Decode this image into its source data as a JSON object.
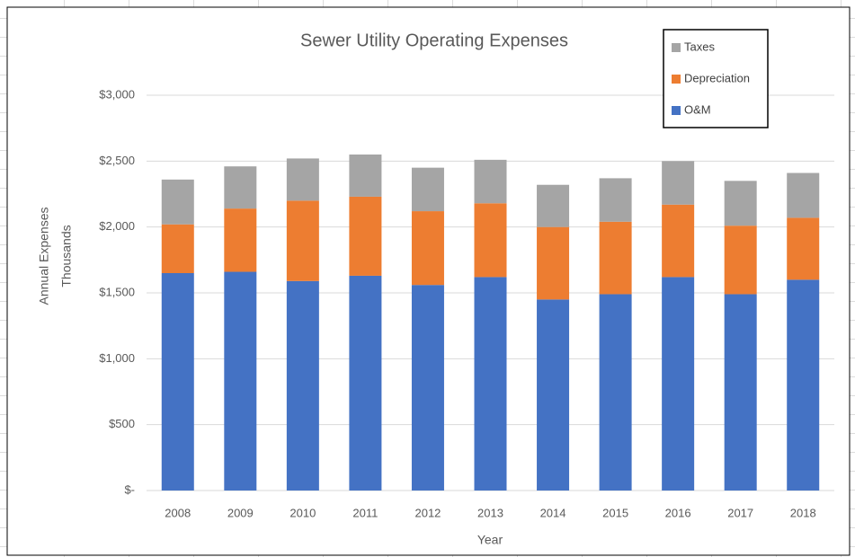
{
  "chart_data": {
    "type": "stacked_bar",
    "title": "Sewer Utility Operating Expenses",
    "xlabel": "Year",
    "ylabel": "Annual Expenses",
    "ylabel_unit": "Thousands",
    "categories": [
      "2008",
      "2009",
      "2010",
      "2011",
      "2012",
      "2013",
      "2014",
      "2015",
      "2016",
      "2017",
      "2018"
    ],
    "series": [
      {
        "name": "O&M",
        "color": "#4472c4",
        "values": [
          1650,
          1660,
          1590,
          1630,
          1560,
          1620,
          1450,
          1490,
          1620,
          1490,
          1600
        ]
      },
      {
        "name": "Depreciation",
        "color": "#ed7d31",
        "values": [
          370,
          480,
          610,
          600,
          560,
          560,
          550,
          550,
          550,
          520,
          470
        ]
      },
      {
        "name": "Taxes",
        "color": "#a5a5a5",
        "values": [
          340,
          320,
          320,
          320,
          330,
          330,
          320,
          330,
          330,
          340,
          340
        ]
      }
    ],
    "ylim": [
      0,
      3000
    ],
    "yticks": [
      {
        "value": 0,
        "label": "$-"
      },
      {
        "value": 500,
        "label": "$500"
      },
      {
        "value": 1000,
        "label": "$1,000"
      },
      {
        "value": 1500,
        "label": "$1,500"
      },
      {
        "value": 2000,
        "label": "$2,000"
      },
      {
        "value": 2500,
        "label": "$2,500"
      },
      {
        "value": 3000,
        "label": "$3,000"
      }
    ],
    "grid": true,
    "legend": "top-right"
  }
}
